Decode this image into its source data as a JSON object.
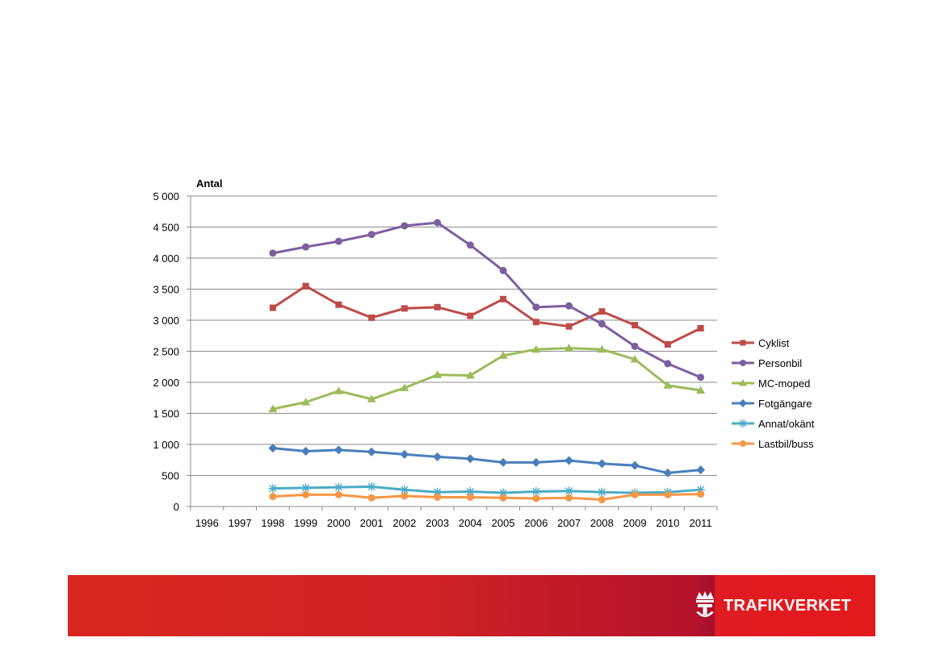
{
  "chart_data": {
    "type": "line",
    "title": "",
    "xlabel": "",
    "ylabel": "Antal",
    "ylim": [
      0,
      5000
    ],
    "yticks": [
      0,
      500,
      1000,
      1500,
      2000,
      2500,
      3000,
      3500,
      4000,
      4500,
      5000
    ],
    "ytick_labels": [
      "0",
      "500",
      "1 000",
      "1 500",
      "2 000",
      "2 500",
      "3 000",
      "3 500",
      "4 000",
      "4 500",
      "5 000"
    ],
    "grid": true,
    "legend_position": "right",
    "categories": [
      "1996",
      "1997",
      "1998",
      "1999",
      "2000",
      "2001",
      "2002",
      "2003",
      "2004",
      "2005",
      "2006",
      "2007",
      "2008",
      "2009",
      "2010",
      "2011"
    ],
    "series": [
      {
        "name": "Cyklist",
        "color": "#be4b48",
        "marker": "square",
        "values": [
          null,
          null,
          3200,
          3550,
          3250,
          3040,
          3190,
          3210,
          3070,
          3340,
          2970,
          2900,
          3140,
          2920,
          2610,
          2870
        ]
      },
      {
        "name": "Personbil",
        "color": "#7d5fa0",
        "marker": "circle",
        "values": [
          null,
          null,
          4080,
          4180,
          4270,
          4380,
          4520,
          4570,
          4210,
          3800,
          3210,
          3230,
          2940,
          2580,
          2300,
          2080
        ]
      },
      {
        "name": "MC-moped",
        "color": "#9bbb59",
        "marker": "triangle",
        "values": [
          null,
          null,
          1570,
          1680,
          1860,
          1730,
          1910,
          2120,
          2110,
          2430,
          2530,
          2550,
          2530,
          2370,
          1950,
          1870
        ]
      },
      {
        "name": "Fotgängare",
        "color": "#4a7ebb",
        "marker": "diamond",
        "values": [
          null,
          null,
          940,
          890,
          910,
          880,
          840,
          800,
          770,
          710,
          710,
          740,
          690,
          660,
          540,
          590
        ]
      },
      {
        "name": "Annat/okänt",
        "color": "#4bacc6",
        "marker": "star",
        "values": [
          null,
          null,
          290,
          300,
          310,
          320,
          270,
          230,
          240,
          220,
          240,
          250,
          230,
          220,
          230,
          270
        ]
      },
      {
        "name": "Lastbil/buss",
        "color": "#f79646",
        "marker": "circle",
        "values": [
          null,
          null,
          160,
          190,
          190,
          140,
          170,
          150,
          150,
          140,
          130,
          140,
          110,
          190,
          190,
          200
        ]
      }
    ]
  },
  "brand": {
    "name": "TRAFIKVERKET",
    "band_color": "#d9261e",
    "logo_icon": "crown-tr-emblem-icon"
  }
}
